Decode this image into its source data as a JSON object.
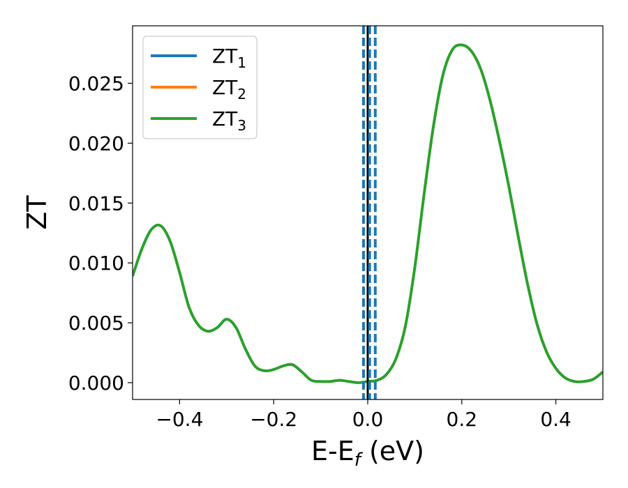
{
  "chart_data": {
    "type": "line",
    "xlabel": {
      "main": "E-E",
      "sub": "f",
      "suffix": " (eV)"
    },
    "ylabel": "ZT",
    "xlim": [
      -0.5,
      0.5
    ],
    "ylim": [
      -0.0014,
      0.0298
    ],
    "xticks": [
      {
        "value": -0.4,
        "label": "−0.4"
      },
      {
        "value": -0.2,
        "label": "−0.2"
      },
      {
        "value": 0.0,
        "label": "0.0"
      },
      {
        "value": 0.2,
        "label": "0.2"
      },
      {
        "value": 0.4,
        "label": "0.4"
      }
    ],
    "yticks": [
      {
        "value": 0.0,
        "label": "0.000"
      },
      {
        "value": 0.005,
        "label": "0.005"
      },
      {
        "value": 0.01,
        "label": "0.010"
      },
      {
        "value": 0.015,
        "label": "0.015"
      },
      {
        "value": 0.02,
        "label": "0.020"
      },
      {
        "value": 0.025,
        "label": "0.025"
      }
    ],
    "legend_position": "top-left",
    "series": [
      {
        "name": "ZT",
        "sub": "1",
        "color": "#1f77b4"
      },
      {
        "name": "ZT",
        "sub": "2",
        "color": "#ff7f0e"
      },
      {
        "name": "ZT",
        "sub": "3",
        "color": "#2ca02c"
      }
    ],
    "curve": {
      "x": [
        -0.5,
        -0.48,
        -0.46,
        -0.44,
        -0.42,
        -0.4,
        -0.38,
        -0.36,
        -0.34,
        -0.32,
        -0.3,
        -0.28,
        -0.26,
        -0.24,
        -0.22,
        -0.2,
        -0.18,
        -0.16,
        -0.14,
        -0.12,
        -0.1,
        -0.08,
        -0.06,
        -0.04,
        -0.02,
        0.0,
        0.02,
        0.04,
        0.06,
        0.08,
        0.1,
        0.12,
        0.14,
        0.16,
        0.18,
        0.2,
        0.22,
        0.24,
        0.26,
        0.28,
        0.3,
        0.32,
        0.34,
        0.36,
        0.38,
        0.4,
        0.42,
        0.44,
        0.46,
        0.48,
        0.5
      ],
      "y": [
        0.0089,
        0.0112,
        0.0128,
        0.0131,
        0.0118,
        0.0092,
        0.0063,
        0.0048,
        0.0043,
        0.0046,
        0.0053,
        0.0046,
        0.0028,
        0.0014,
        0.001,
        0.0011,
        0.0014,
        0.0015,
        0.0009,
        0.0002,
        0.0001,
        0.0001,
        0.0002,
        0.0001,
        0.0,
        0.0001,
        0.0002,
        0.0007,
        0.002,
        0.0047,
        0.0096,
        0.0158,
        0.0215,
        0.0257,
        0.0278,
        0.0282,
        0.0277,
        0.0262,
        0.0236,
        0.0202,
        0.0164,
        0.0122,
        0.0082,
        0.0049,
        0.0026,
        0.0012,
        0.0004,
        0.0001,
        0.0001,
        0.0003,
        0.0009
      ],
      "color": "#2ca02c"
    },
    "vlines": [
      {
        "x": 0.0,
        "style": "solid",
        "color": "#000000"
      },
      {
        "x": -0.009,
        "style": "dashed",
        "color": "#1f77b4"
      },
      {
        "x": 0.004,
        "style": "dashed",
        "color": "#1f77b4"
      },
      {
        "x": 0.016,
        "style": "dashed",
        "color": "#1f77b4"
      }
    ]
  }
}
